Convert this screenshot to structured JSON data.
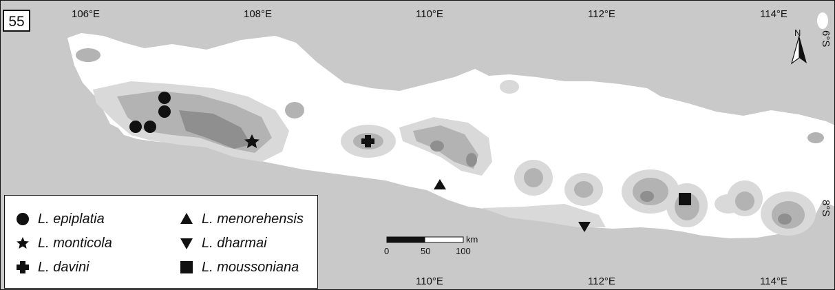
{
  "panel_label": "55",
  "colors": {
    "sea": "#c9c9c9",
    "land_low": "#ffffff",
    "elev_1": "#d9d9d9",
    "elev_2": "#b3b3b3",
    "elev_3": "#8f8f8f",
    "marker": "#111111"
  },
  "top_ticks": [
    "106°E",
    "108°E",
    "110°E",
    "112°E",
    "114°E"
  ],
  "bottom_ticks": [
    "110°E",
    "112°E",
    "114°E"
  ],
  "lat_ticks": [
    "6°S",
    "8°S"
  ],
  "north_label": "N",
  "scalebar": {
    "unit": "km",
    "labels": [
      "0",
      "50",
      "100"
    ]
  },
  "legend": [
    {
      "symbol": "circle",
      "genus": "L.",
      "species": "epiplatia"
    },
    {
      "symbol": "star",
      "genus": "L.",
      "species": "monticola"
    },
    {
      "symbol": "cross",
      "genus": "L.",
      "species": "davini"
    },
    {
      "symbol": "triangle-up",
      "genus": "L.",
      "species": "menorehensis"
    },
    {
      "symbol": "triangle-down",
      "genus": "L.",
      "species": "dharmai"
    },
    {
      "symbol": "square",
      "genus": "L.",
      "species": "moussoniana"
    }
  ],
  "records": [
    {
      "species": "epiplatia",
      "symbol": "circle",
      "count": 4
    },
    {
      "species": "monticola",
      "symbol": "star",
      "count": 1
    },
    {
      "species": "davini",
      "symbol": "cross",
      "count": 1
    },
    {
      "species": "menorehensis",
      "symbol": "triangle-up",
      "count": 1
    },
    {
      "species": "dharmai",
      "symbol": "triangle-down",
      "count": 1
    },
    {
      "species": "moussoniana",
      "symbol": "square",
      "count": 1
    }
  ]
}
